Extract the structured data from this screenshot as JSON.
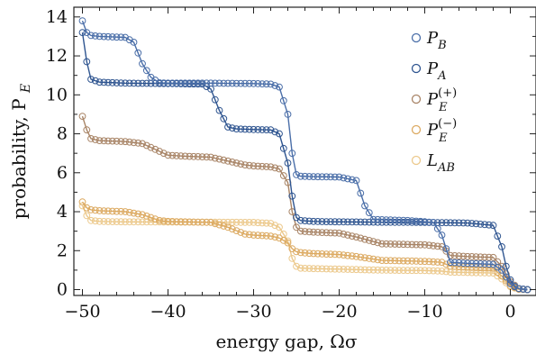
{
  "chart_data": {
    "type": "line",
    "title": "",
    "xlabel": "energy gap, Ωσ",
    "ylabel": "probability, P",
    "ylabel_subscript": "E",
    "xlim": [
      -51,
      3
    ],
    "ylim": [
      -0.3,
      14.5
    ],
    "xticks": [
      -50,
      -40,
      -30,
      -20,
      -10,
      0
    ],
    "yticks": [
      0,
      2,
      4,
      6,
      8,
      10,
      12,
      14
    ],
    "xtick_labels": [
      "−50",
      "−40",
      "−30",
      "−20",
      "−10",
      "0"
    ],
    "ytick_labels": [
      "0",
      "2",
      "4",
      "6",
      "8",
      "10",
      "12",
      "14"
    ],
    "grid": false,
    "legend_position": "top-right",
    "markers": "open-circles",
    "series": [
      {
        "name": "P",
        "sub": "B",
        "sup": "",
        "color": "#4a6ea8",
        "x": [
          -50,
          -49.5,
          -49,
          -48,
          -45,
          -44,
          -43,
          -42,
          -41,
          -40,
          -35,
          -30,
          -28,
          -27,
          -26,
          -25.5,
          -25,
          -24.5,
          -23,
          -20,
          -18,
          -17,
          -16,
          -12,
          -9,
          -8,
          -7,
          -5,
          -2,
          -1,
          0,
          1,
          2
        ],
        "y": [
          13.8,
          13.2,
          13.05,
          13.0,
          12.95,
          12.7,
          11.6,
          10.9,
          10.62,
          10.6,
          10.6,
          10.58,
          10.55,
          10.4,
          9.0,
          7.0,
          5.9,
          5.82,
          5.8,
          5.78,
          5.6,
          4.3,
          3.6,
          3.55,
          3.45,
          2.8,
          1.4,
          1.35,
          1.3,
          1.0,
          0.3,
          0.05,
          0.0
        ]
      },
      {
        "name": "P",
        "sub": "A",
        "sup": "",
        "color": "#2f5590",
        "x": [
          -50,
          -49.5,
          -49,
          -48,
          -45,
          -40,
          -36,
          -35,
          -34,
          -33,
          -32,
          -30,
          -28,
          -27,
          -26,
          -25.5,
          -25,
          -24.5,
          -23,
          -20,
          -15,
          -10,
          -5,
          -2,
          -1,
          -0.5,
          0,
          0.5,
          1,
          2
        ],
        "y": [
          13.2,
          11.7,
          10.8,
          10.65,
          10.6,
          10.58,
          10.55,
          10.3,
          9.2,
          8.35,
          8.25,
          8.22,
          8.2,
          8.0,
          6.5,
          4.8,
          3.7,
          3.55,
          3.5,
          3.48,
          3.46,
          3.45,
          3.42,
          3.3,
          2.2,
          1.2,
          0.5,
          0.15,
          0.05,
          0.0
        ]
      },
      {
        "name": "P",
        "sub": "E",
        "sup": "(+)",
        "color": "#a88466",
        "x": [
          -50,
          -49.5,
          -49,
          -48,
          -45,
          -43,
          -41,
          -40,
          -38,
          -35,
          -33,
          -31,
          -30,
          -28,
          -27,
          -26,
          -25.5,
          -25,
          -24.5,
          -23,
          -20,
          -18,
          -15,
          -10,
          -8,
          -7,
          -5,
          -2,
          -1,
          0,
          1,
          2
        ],
        "y": [
          8.9,
          8.2,
          7.75,
          7.65,
          7.6,
          7.5,
          7.1,
          6.9,
          6.85,
          6.8,
          6.6,
          6.4,
          6.35,
          6.3,
          6.2,
          5.5,
          4.0,
          3.2,
          3.0,
          2.95,
          2.9,
          2.7,
          2.35,
          2.3,
          2.2,
          1.75,
          1.7,
          1.65,
          1.2,
          0.4,
          0.05,
          0.0
        ]
      },
      {
        "name": "P",
        "sub": "E",
        "sup": "(−)",
        "color": "#dcaa62",
        "x": [
          -50,
          -49.5,
          -49,
          -48,
          -45,
          -43,
          -41,
          -40,
          -35,
          -33,
          -31,
          -30,
          -28,
          -27,
          -26,
          -25.5,
          -25,
          -24.5,
          -23,
          -20,
          -18,
          -15,
          -10,
          -8,
          -7,
          -5,
          -2,
          -1,
          0,
          1,
          2
        ],
        "y": [
          4.5,
          4.2,
          4.1,
          4.05,
          4.0,
          3.85,
          3.55,
          3.5,
          3.45,
          3.2,
          2.85,
          2.8,
          2.75,
          2.65,
          2.4,
          2.1,
          1.95,
          1.9,
          1.85,
          1.8,
          1.7,
          1.5,
          1.45,
          1.4,
          1.2,
          1.15,
          1.1,
          0.7,
          0.2,
          0.02,
          0.0
        ]
      },
      {
        "name": "L",
        "sub": "AB",
        "sup": "",
        "color": "#ecc98c",
        "x": [
          -50,
          -49.5,
          -49,
          -48,
          -45,
          -40,
          -35,
          -30,
          -28,
          -27,
          -26,
          -25.5,
          -25,
          -24.5,
          -23,
          -20,
          -15,
          -10,
          -8,
          -7,
          -5,
          -2,
          -1,
          0,
          1,
          2
        ],
        "y": [
          4.3,
          3.8,
          3.55,
          3.5,
          3.48,
          3.47,
          3.46,
          3.45,
          3.4,
          3.2,
          2.5,
          1.6,
          1.2,
          1.1,
          1.08,
          1.05,
          1.0,
          0.98,
          0.95,
          0.9,
          0.88,
          0.85,
          0.55,
          0.15,
          0.02,
          0.0
        ]
      }
    ]
  }
}
